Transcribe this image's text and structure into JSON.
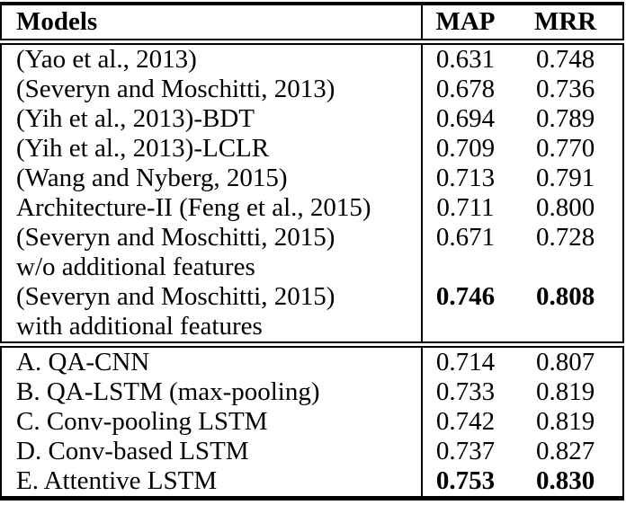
{
  "page": {
    "background": "#ffffff",
    "text_color": "#000000",
    "border_color": "#000000"
  },
  "table": {
    "columns": [
      {
        "key": "model",
        "label": "Models"
      },
      {
        "key": "map",
        "label": "MAP"
      },
      {
        "key": "mrr",
        "label": "MRR"
      }
    ],
    "sections": [
      {
        "name": "baseline-models",
        "rows": [
          {
            "model_lines": [
              "(Yao et al., 2013)"
            ],
            "map": "0.631",
            "mrr": "0.748",
            "bold": false
          },
          {
            "model_lines": [
              "(Severyn and Moschitti, 2013)"
            ],
            "map": "0.678",
            "mrr": "0.736",
            "bold": false
          },
          {
            "model_lines": [
              "(Yih et al., 2013)-BDT"
            ],
            "map": "0.694",
            "mrr": "0.789",
            "bold": false
          },
          {
            "model_lines": [
              "(Yih et al., 2013)-LCLR"
            ],
            "map": "0.709",
            "mrr": "0.770",
            "bold": false
          },
          {
            "model_lines": [
              "(Wang and Nyberg, 2015)"
            ],
            "map": "0.713",
            "mrr": "0.791",
            "bold": false
          },
          {
            "model_lines": [
              "Architecture-II (Feng et al., 2015)"
            ],
            "map": "0.711",
            "mrr": "0.800",
            "bold": false
          },
          {
            "model_lines": [
              "(Severyn and Moschitti, 2015)",
              "w/o additional features"
            ],
            "map": "0.671",
            "mrr": "0.728",
            "bold": false
          },
          {
            "model_lines": [
              "(Severyn and Moschitti, 2015)",
              "with additional features"
            ],
            "map": "0.746",
            "mrr": "0.808",
            "bold": true
          }
        ]
      },
      {
        "name": "proposed-models",
        "rows": [
          {
            "model_lines": [
              "A. QA-CNN"
            ],
            "map": "0.714",
            "mrr": "0.807",
            "bold": false
          },
          {
            "model_lines": [
              "B. QA-LSTM (max-pooling)"
            ],
            "map": "0.733",
            "mrr": "0.819",
            "bold": false
          },
          {
            "model_lines": [
              "C. Conv-pooling LSTM"
            ],
            "map": "0.742",
            "mrr": "0.819",
            "bold": false
          },
          {
            "model_lines": [
              "D. Conv-based LSTM"
            ],
            "map": "0.737",
            "mrr": "0.827",
            "bold": false
          },
          {
            "model_lines": [
              "E. Attentive LSTM"
            ],
            "map": "0.753",
            "mrr": "0.830",
            "bold": true
          }
        ]
      }
    ]
  }
}
